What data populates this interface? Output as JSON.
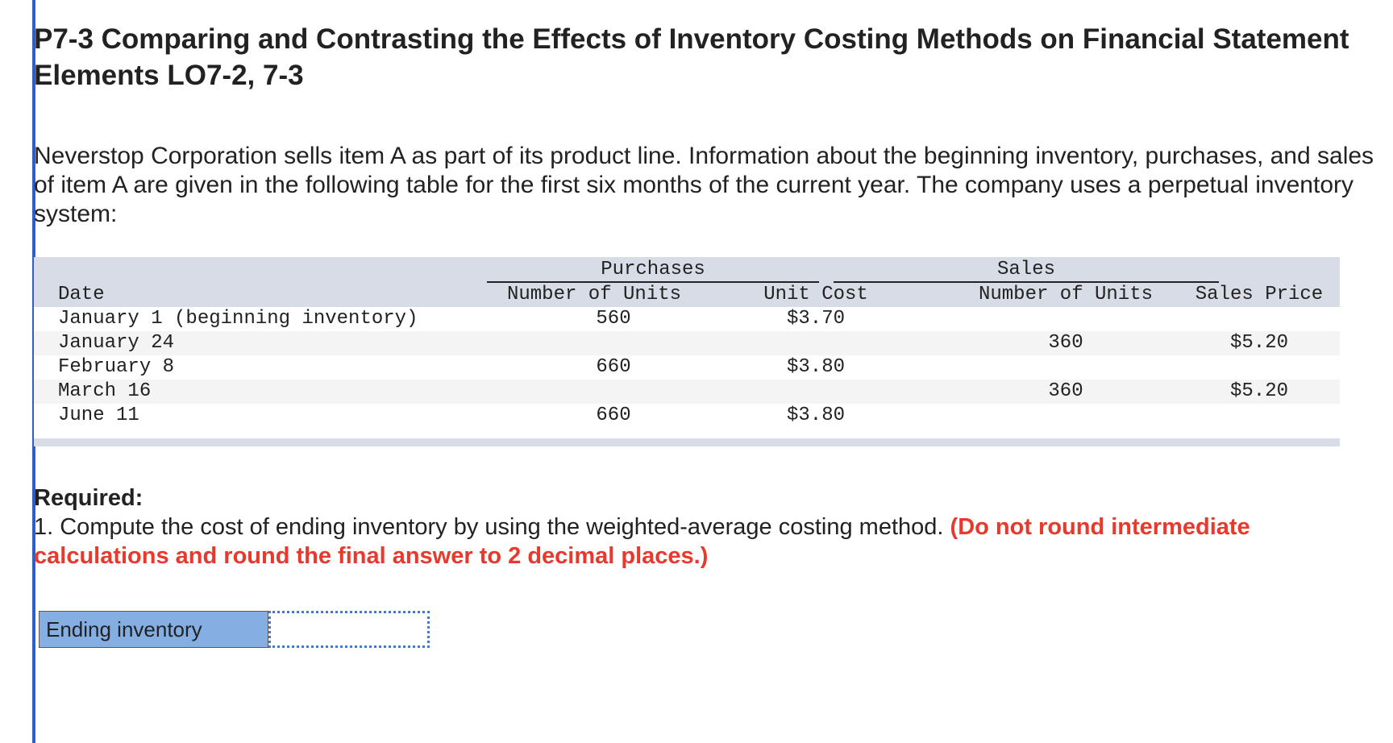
{
  "problem": {
    "title": "P7-3 Comparing and Contrasting the Effects of Inventory Costing Methods on Financial Statement Elements LO7-2, 7-3",
    "intro": "Neverstop Corporation sells item A as part of its product line. Information about the beginning inventory, purchases, and sales of item A are given in the following table for the first six months of the current year. The company uses a perpetual inventory system:"
  },
  "table": {
    "group_headers": {
      "purchases": "Purchases",
      "sales": "Sales"
    },
    "columns": {
      "date": "Date",
      "purchase_units": "Number of Units",
      "unit_cost": "Unit Cost",
      "sales_units": "Number of Units",
      "sales_price": "Sales Price"
    },
    "rows": [
      {
        "date": "January 1 (beginning inventory)",
        "purchase_units": "560",
        "unit_cost": "$3.70",
        "sales_units": "",
        "sales_price": ""
      },
      {
        "date": "January 24",
        "purchase_units": "",
        "unit_cost": "",
        "sales_units": "360",
        "sales_price": "$5.20"
      },
      {
        "date": "February 8",
        "purchase_units": "660",
        "unit_cost": "$3.80",
        "sales_units": "",
        "sales_price": ""
      },
      {
        "date": "March 16",
        "purchase_units": "",
        "unit_cost": "",
        "sales_units": "360",
        "sales_price": "$5.20"
      },
      {
        "date": "June 11",
        "purchase_units": "660",
        "unit_cost": "$3.80",
        "sales_units": "",
        "sales_price": ""
      }
    ]
  },
  "required": {
    "label": "Required:",
    "question": "1. Compute the cost of ending inventory by using the weighted-average costing method.",
    "note": "(Do not round intermediate calculations and round the final answer to 2 decimal places.)"
  },
  "answer": {
    "label": "Ending inventory",
    "value": ""
  },
  "colors": {
    "accent_bar": "#2f5fc4",
    "table_header_bg": "#d8dce6",
    "note_red": "#e8392c",
    "label_blue": "#85aee3"
  }
}
